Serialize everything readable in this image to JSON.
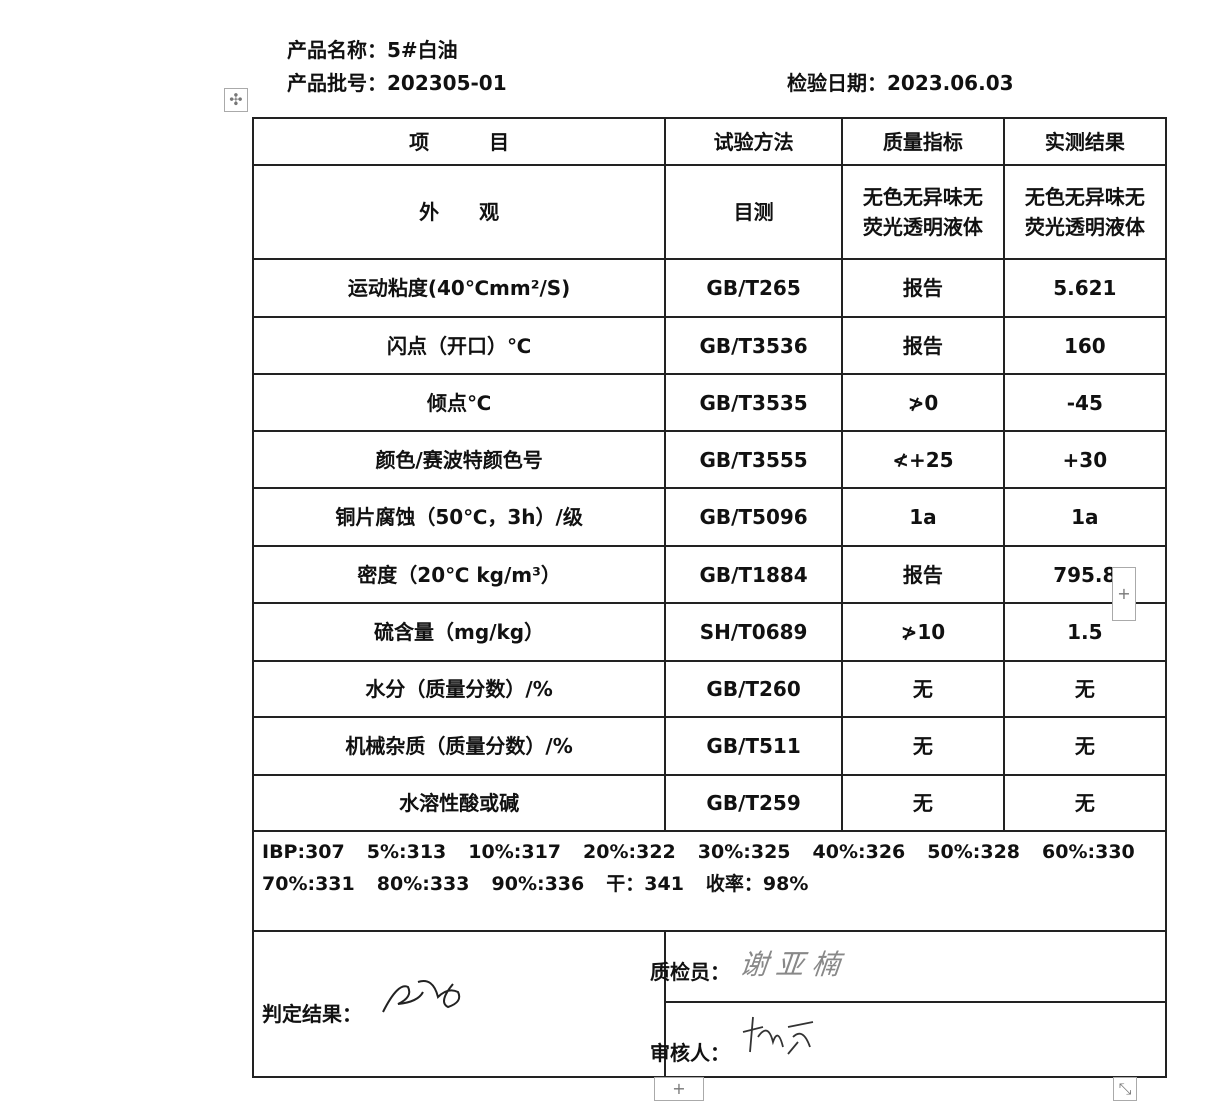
{
  "header": {
    "product_name": "产品名称：5#白油",
    "batch_no": "产品批号：202305-01",
    "inspect_date": "检验日期：2023.06.03"
  },
  "table": {
    "columns": [
      "项　　　目",
      "试验方法",
      "质量指标",
      "实测结果"
    ],
    "rows": [
      {
        "item": "外　　观",
        "method": "目测",
        "spec": "无色无异味无荧光透明液体",
        "result": "无色无异味无荧光透明液体"
      },
      {
        "item": "运动粘度(40℃mm²/S)",
        "method": "GB/T265",
        "spec": "报告",
        "result": "5.621"
      },
      {
        "item": "闪点（开口）℃",
        "method": "GB/T3536",
        "spec": "报告",
        "result": "160"
      },
      {
        "item": "倾点℃",
        "method": "GB/T3535",
        "spec": "≯0",
        "result": "-45"
      },
      {
        "item": "颜色/赛波特颜色号",
        "method": "GB/T3555",
        "spec": "≮+25",
        "result": "+30"
      },
      {
        "item": "铜片腐蚀（50℃，3h）/级",
        "method": "GB/T5096",
        "spec": "1a",
        "result": "1a"
      },
      {
        "item": "密度（20℃ kg/m³）",
        "method": "GB/T1884",
        "spec": "报告",
        "result": "795.8"
      },
      {
        "item": "硫含量（mg/kg）",
        "method": "SH/T0689",
        "spec": "≯10",
        "result": "1.5"
      },
      {
        "item": "水分（质量分数）/%",
        "method": "GB/T260",
        "spec": "无",
        "result": "无"
      },
      {
        "item": "机械杂质（质量分数）/%",
        "method": "GB/T511",
        "spec": "无",
        "result": "无"
      },
      {
        "item": "水溶性酸或碱",
        "method": "GB/T259",
        "spec": "无",
        "result": "无"
      }
    ],
    "distillation": [
      "IBP:307",
      "5%:313",
      "10%:317",
      "20%:322",
      "30%:325",
      "40%:326",
      "50%:328",
      "60%:330",
      "70%:331",
      "80%:333",
      "90%:336",
      "干：341",
      "收率：98%"
    ]
  },
  "footer": {
    "judgement_label": "判定结果：",
    "judgement_signature": "合格",
    "inspector_label": "质检员：",
    "inspector_signature": "谢亚楠",
    "reviewer_label": "审核人：",
    "reviewer_signature": "杨森"
  },
  "handles": {
    "move": "✣",
    "add": "+",
    "resize": "⤡"
  }
}
